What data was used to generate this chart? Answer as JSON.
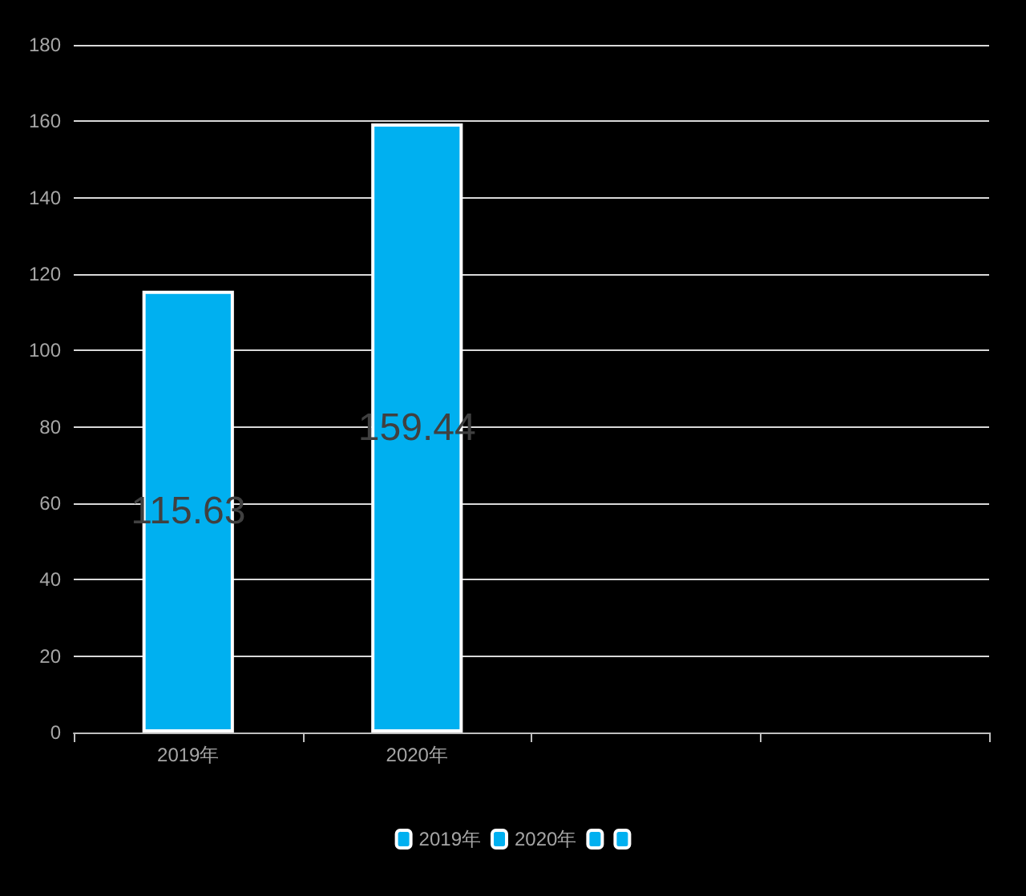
{
  "chart_data": {
    "type": "bar",
    "categories": [
      "2019年",
      "2020年",
      null,
      null
    ],
    "stacked": true,
    "series": [
      {
        "name": "2019年",
        "color": "#00b0f0",
        "values": [
          115.63,
          null,
          null,
          null
        ]
      },
      {
        "name": "2020年",
        "color": "#00b0f0",
        "values": [
          null,
          159.44,
          null,
          null
        ]
      },
      {
        "color": "#00b0f0",
        "values": [
          null,
          null,
          null,
          null
        ]
      },
      {
        "color": "#00b0f0",
        "values": [
          null,
          null,
          null,
          null
        ]
      }
    ],
    "ylim": [
      0,
      180
    ],
    "yticks": [
      0,
      20,
      40,
      60,
      80,
      100,
      120,
      140,
      160,
      180
    ],
    "grid": "y",
    "data_labels": true,
    "legend": "bottom"
  }
}
